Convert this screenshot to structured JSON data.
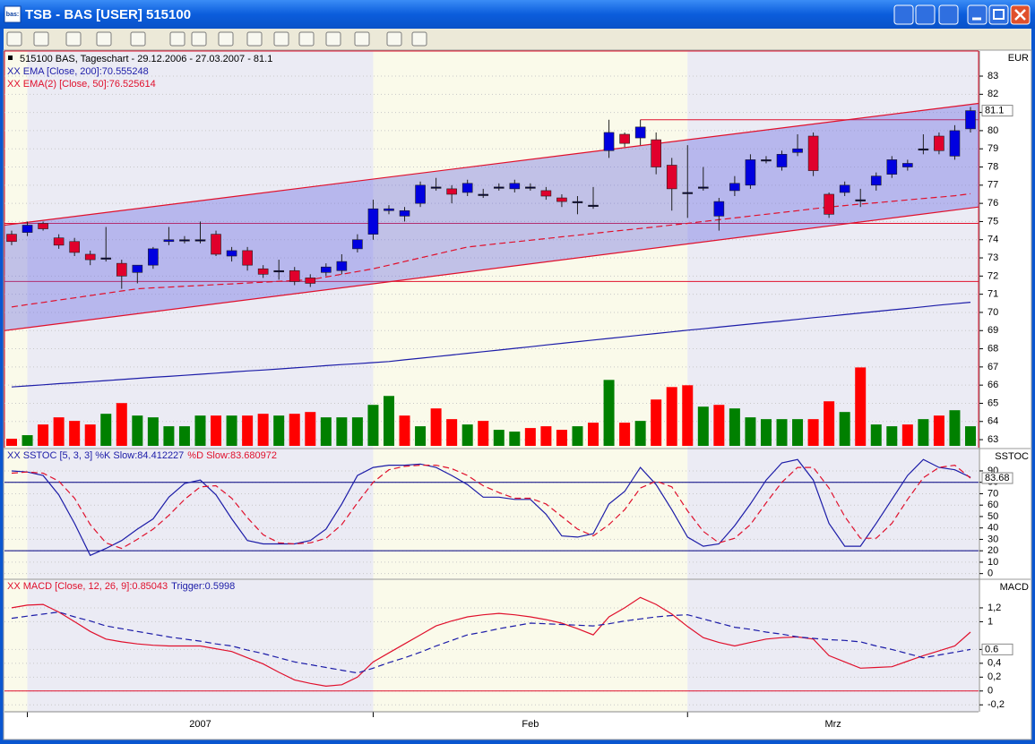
{
  "window": {
    "title": "TSB - BAS [USER] 515100",
    "icon": "bas:"
  },
  "chart_data": [
    {
      "type": "candlestick",
      "title": "515100 BAS, Tageschart - 29.12.2006 - 27.03.2007 - 81.1",
      "y_label": "EUR",
      "open": [
        74.3,
        74.4,
        74.9,
        74.1,
        73.9,
        73.2,
        73.0,
        72.7,
        72.2,
        72.6,
        73.9,
        74.0,
        74.0,
        74.3,
        73.1,
        73.4,
        72.4,
        72.3,
        72.3,
        71.9,
        72.2,
        72.3,
        73.5,
        74.3,
        75.6,
        75.3,
        76.0,
        76.9,
        76.8,
        76.6,
        76.5,
        76.9,
        76.8,
        76.9,
        76.7,
        76.3,
        76.1,
        75.9,
        78.9,
        79.8,
        79.6,
        79.5,
        78.1,
        76.6,
        76.9,
        75.3,
        76.7,
        77.0,
        78.4,
        78.0,
        78.8,
        79.7,
        76.5,
        76.6,
        76.2,
        77.0,
        77.6,
        78.0,
        79.0,
        79.7,
        78.6,
        80.1
      ],
      "high": [
        74.5,
        75.0,
        75.0,
        74.3,
        74.1,
        73.4,
        74.7,
        72.9,
        72.6,
        73.6,
        74.7,
        74.2,
        75.0,
        74.5,
        73.6,
        73.6,
        72.6,
        72.9,
        72.5,
        72.1,
        72.7,
        73.2,
        74.3,
        76.2,
        75.9,
        75.8,
        77.2,
        77.4,
        77.0,
        77.3,
        76.8,
        77.1,
        77.3,
        77.1,
        76.9,
        76.5,
        76.4,
        76.9,
        80.6,
        79.9,
        80.6,
        79.9,
        78.5,
        79.2,
        78.0,
        76.3,
        77.5,
        78.7,
        78.6,
        78.9,
        79.8,
        79.9,
        76.6,
        77.2,
        76.8,
        77.7,
        78.6,
        78.4,
        79.8,
        79.9,
        80.3,
        81.3
      ],
      "low": [
        73.7,
        74.2,
        74.5,
        73.5,
        73.1,
        72.6,
        72.8,
        71.3,
        71.6,
        72.4,
        73.7,
        73.8,
        73.8,
        73.1,
        72.8,
        72.3,
        71.9,
        71.8,
        71.5,
        71.4,
        72.0,
        72.1,
        73.3,
        74.0,
        75.4,
        75.0,
        75.8,
        76.7,
        76.0,
        76.4,
        76.3,
        76.7,
        76.6,
        76.7,
        76.2,
        75.8,
        75.4,
        75.7,
        78.5,
        79.1,
        79.2,
        77.6,
        75.6,
        75.2,
        76.7,
        74.5,
        76.4,
        76.8,
        78.2,
        77.8,
        78.6,
        77.5,
        75.2,
        76.4,
        75.8,
        76.7,
        77.4,
        77.8,
        78.7,
        78.7,
        78.4,
        79.9
      ],
      "close": [
        73.9,
        74.8,
        74.6,
        73.7,
        73.3,
        72.9,
        73.0,
        72.0,
        72.6,
        73.5,
        74.0,
        74.0,
        74.0,
        73.2,
        73.4,
        72.6,
        72.1,
        72.3,
        71.7,
        71.6,
        72.5,
        72.8,
        74.0,
        75.7,
        75.7,
        75.6,
        77.0,
        76.9,
        76.5,
        77.1,
        76.5,
        76.9,
        77.1,
        76.9,
        76.4,
        76.1,
        76.1,
        75.9,
        79.9,
        79.3,
        80.2,
        78.0,
        76.8,
        76.6,
        76.9,
        76.1,
        77.1,
        78.4,
        78.4,
        78.7,
        79.0,
        77.8,
        75.4,
        77.0,
        76.2,
        77.5,
        78.4,
        78.2,
        79.0,
        78.9,
        80.0,
        81.1
      ],
      "up_color": "#0000e0",
      "down_color": "#e0002c",
      "volume": {
        "axis": "y2",
        "up_color": "#008000",
        "down_color": "#ff0000",
        "values": [
          0.8,
          1.2,
          2.4,
          3.2,
          2.8,
          2.4,
          3.6,
          4.8,
          3.4,
          3.2,
          2.2,
          2.2,
          3.4,
          3.4,
          3.4,
          3.4,
          3.6,
          3.4,
          3.6,
          3.8,
          3.2,
          3.2,
          3.2,
          4.6,
          5.6,
          3.4,
          2.2,
          4.2,
          3.0,
          2.4,
          2.8,
          1.8,
          1.6,
          2.0,
          2.2,
          1.8,
          2.2,
          2.6,
          7.4,
          2.6,
          2.8,
          5.2,
          6.6,
          6.8,
          4.4,
          4.6,
          4.2,
          3.2,
          3.0,
          3.0,
          3.0,
          3.0,
          5.0,
          3.8,
          8.8,
          2.4,
          2.2,
          2.4,
          3.0,
          3.4,
          4.0,
          2.2
        ]
      },
      "series": [
        {
          "name": "XX EMA [Close, 200]:70.555248",
          "color": "#1c1ca8",
          "dash": false,
          "values": [
            65.9,
            65.96,
            66.02,
            66.08,
            66.13,
            66.19,
            66.25,
            66.31,
            66.37,
            66.43,
            66.48,
            66.54,
            66.6,
            66.66,
            66.72,
            66.78,
            66.83,
            66.89,
            66.95,
            67.01,
            67.07,
            67.13,
            67.18,
            67.24,
            67.3,
            67.39,
            67.48,
            67.57,
            67.66,
            67.75,
            67.84,
            67.93,
            68.02,
            68.11,
            68.21,
            68.3,
            68.39,
            68.48,
            68.57,
            68.66,
            68.75,
            68.84,
            68.93,
            69.02,
            69.1,
            69.19,
            69.28,
            69.36,
            69.45,
            69.53,
            69.62,
            69.71,
            69.79,
            69.88,
            69.97,
            70.05,
            70.14,
            70.22,
            70.31,
            70.4,
            70.48,
            70.56
          ]
        },
        {
          "name": "XX EMA(2) [Close, 50]:76.525614",
          "color": "#e0102c",
          "dash": true,
          "values": [
            70.3,
            70.43,
            70.55,
            70.68,
            70.8,
            70.93,
            71.05,
            71.18,
            71.3,
            71.35,
            71.39,
            71.44,
            71.48,
            71.53,
            71.57,
            71.62,
            71.66,
            71.71,
            71.75,
            71.8,
            71.95,
            72.1,
            72.25,
            72.4,
            72.6,
            72.8,
            73.0,
            73.2,
            73.4,
            73.6,
            73.69,
            73.79,
            73.88,
            73.97,
            74.06,
            74.16,
            74.25,
            74.34,
            74.44,
            74.53,
            74.62,
            74.71,
            74.81,
            74.9,
            75.0,
            75.1,
            75.2,
            75.3,
            75.4,
            75.5,
            75.6,
            75.7,
            75.8,
            75.88,
            75.96,
            76.03,
            76.11,
            76.19,
            76.27,
            76.34,
            76.42,
            76.53
          ]
        }
      ],
      "channel": {
        "upper": [
          74.8,
          81.5
        ],
        "lower": [
          69.0,
          75.8
        ],
        "color": "#e0102c"
      },
      "hlines": [
        {
          "value": 74.9,
          "color": "#e0102c"
        },
        {
          "value": 71.7,
          "color": "#e0102c"
        },
        {
          "value": 80.6,
          "color": "#e0102c",
          "start_index": 40
        }
      ],
      "ylim": [
        62.56,
        84.38
      ],
      "y2lim": [
        0,
        44.3
      ],
      "yticks": [
        63,
        64,
        65,
        66,
        67,
        68,
        69,
        70,
        71,
        72,
        73,
        74,
        75,
        76,
        77,
        78,
        79,
        80,
        81,
        82,
        83
      ],
      "grid": true,
      "x_labels": [
        "2007",
        "Feb",
        "Mrz"
      ],
      "month_starts": [
        1,
        23,
        43
      ]
    },
    {
      "type": "line",
      "y_label": "SSTOC",
      "series": [
        {
          "name": "XX SSTOC [5, 3, 3] %K Slow:84.412227",
          "color": "#1c1ca8",
          "dash": false,
          "values": [
            90,
            89,
            86,
            69,
            44,
            16,
            22,
            29,
            39,
            48,
            67,
            79,
            82,
            69,
            48,
            29,
            26,
            26,
            26,
            29,
            39,
            61,
            86,
            93,
            95,
            95,
            96,
            93,
            86,
            78,
            67,
            67,
            65,
            65,
            52,
            33,
            32,
            35,
            61,
            72,
            93,
            78,
            56,
            32,
            24,
            26,
            42,
            61,
            82,
            97,
            100,
            82,
            44,
            24,
            24,
            44,
            65,
            86,
            100,
            93,
            91,
            84.4
          ]
        },
        {
          "name": "%D Slow:83.680972",
          "color": "#e0102c",
          "dash": true,
          "values": [
            88,
            89,
            88,
            81,
            66,
            43,
            27,
            22,
            30,
            39,
            51,
            65,
            76,
            77,
            66,
            49,
            34,
            27,
            26,
            27,
            31,
            43,
            62,
            80,
            91,
            94,
            95,
            95,
            92,
            86,
            77,
            71,
            66,
            66,
            61,
            50,
            39,
            33,
            43,
            56,
            75,
            81,
            76,
            55,
            37,
            27,
            31,
            43,
            62,
            80,
            93,
            93,
            75,
            50,
            31,
            31,
            44,
            65,
            84,
            93,
            95,
            83.68
          ]
        }
      ],
      "hlines": [
        {
          "value": 80,
          "color": "#000080"
        },
        {
          "value": 20,
          "color": "#000080"
        }
      ],
      "ylim": [
        -3.4,
        108.8
      ],
      "yticks": [
        0,
        10,
        20,
        30,
        40,
        50,
        60,
        70,
        80,
        90
      ],
      "grid": true
    },
    {
      "type": "line",
      "y_label": "MACD",
      "series": [
        {
          "name": "XX MACD [Close, 12, 26, 9]:0.85043",
          "color": "#e0102c",
          "dash": false,
          "values": [
            1.2,
            1.24,
            1.25,
            1.14,
            1.0,
            0.86,
            0.75,
            0.71,
            0.68,
            0.66,
            0.65,
            0.65,
            0.65,
            0.61,
            0.57,
            0.48,
            0.39,
            0.27,
            0.16,
            0.11,
            0.07,
            0.09,
            0.2,
            0.42,
            0.55,
            0.68,
            0.81,
            0.94,
            1.01,
            1.07,
            1.1,
            1.12,
            1.1,
            1.07,
            1.03,
            0.98,
            0.9,
            0.81,
            1.07,
            1.2,
            1.35,
            1.25,
            1.11,
            0.93,
            0.77,
            0.7,
            0.65,
            0.7,
            0.75,
            0.77,
            0.78,
            0.75,
            0.51,
            0.42,
            0.33,
            0.34,
            0.35,
            0.43,
            0.51,
            0.58,
            0.65,
            0.85
          ]
        },
        {
          "name": "Trigger:0.5998",
          "color": "#1c1ca8",
          "dash": true,
          "values": [
            1.05,
            1.08,
            1.11,
            1.14,
            1.07,
            1.01,
            0.94,
            0.9,
            0.86,
            0.82,
            0.78,
            0.75,
            0.72,
            0.68,
            0.65,
            0.59,
            0.54,
            0.48,
            0.42,
            0.38,
            0.34,
            0.3,
            0.26,
            0.33,
            0.41,
            0.48,
            0.56,
            0.65,
            0.73,
            0.81,
            0.85,
            0.9,
            0.94,
            0.98,
            0.97,
            0.96,
            0.95,
            0.94,
            0.97,
            1.01,
            1.04,
            1.07,
            1.09,
            1.1,
            1.04,
            0.98,
            0.92,
            0.89,
            0.85,
            0.82,
            0.78,
            0.76,
            0.74,
            0.73,
            0.71,
            0.65,
            0.6,
            0.54,
            0.48,
            0.52,
            0.56,
            0.6
          ]
        }
      ],
      "hlines": [
        {
          "value": 0,
          "color": "#e0102c"
        }
      ],
      "ylim": [
        -0.3,
        1.6
      ],
      "yticks": [
        {
          "value": 1.2,
          "label": "1,2"
        },
        1,
        {
          "value": 0.6,
          "label": "0,6"
        },
        {
          "value": 0.4,
          "label": "0,4"
        },
        {
          "value": 0.2,
          "label": "0,2"
        },
        0,
        {
          "value": -0.2,
          "label": "-0,2"
        }
      ],
      "grid": true
    }
  ]
}
